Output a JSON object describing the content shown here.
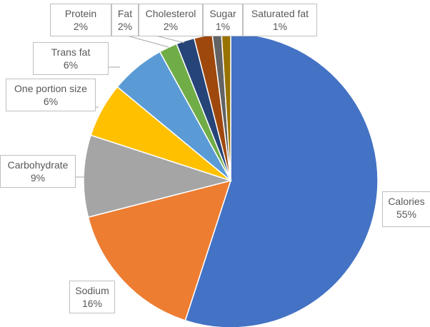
{
  "chart_data": {
    "type": "pie",
    "title": "",
    "start_angle_deg": 0,
    "direction": "clockwise",
    "slices": [
      {
        "name": "Calories",
        "value": 55,
        "label": "55%",
        "color": "#4472c4"
      },
      {
        "name": "Sodium",
        "value": 16,
        "label": "16%",
        "color": "#ed7d31"
      },
      {
        "name": "Carbohydrate",
        "value": 9,
        "label": "9%",
        "color": "#a5a5a5"
      },
      {
        "name": "One portion size",
        "value": 6,
        "label": "6%",
        "color": "#ffc000"
      },
      {
        "name": "Trans fat",
        "value": 6,
        "label": "6%",
        "color": "#5b9bd5"
      },
      {
        "name": "Protein",
        "value": 2,
        "label": "2%",
        "color": "#70ad47"
      },
      {
        "name": "Fat",
        "value": 2,
        "label": "2%",
        "color": "#264478"
      },
      {
        "name": "Cholesterol",
        "value": 2,
        "label": "2%",
        "color": "#9e480e"
      },
      {
        "name": "Sugar",
        "value": 1,
        "label": "1%",
        "color": "#636363"
      },
      {
        "name": "Saturated fat",
        "value": 1,
        "label": "1%",
        "color": "#997300"
      }
    ],
    "legend": "none",
    "label_style": "callout-with-leader-lines"
  }
}
